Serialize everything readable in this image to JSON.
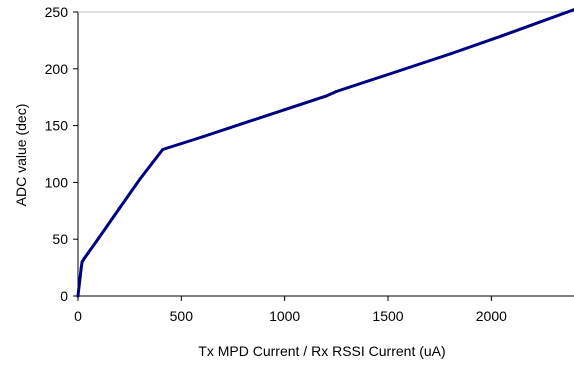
{
  "chart_data": {
    "type": "line",
    "title": "",
    "xlabel": "Tx MPD Current / Rx RSSI Current (uA)",
    "ylabel": "ADC value (dec)",
    "xlim": [
      0,
      2400
    ],
    "ylim": [
      0,
      250
    ],
    "xticks": [
      0,
      500,
      1000,
      1500,
      2000
    ],
    "yticks": [
      0,
      50,
      100,
      150,
      200,
      250
    ],
    "grid": false,
    "legend": "none",
    "series": [
      {
        "color": "#000080",
        "x": [
          0,
          5,
          10,
          15,
          20,
          30,
          50,
          100,
          200,
          300,
          410,
          600,
          800,
          1000,
          1200,
          1250,
          1500,
          1800,
          2050,
          2400
        ],
        "y": [
          0,
          8,
          16,
          24,
          30,
          33,
          38,
          51,
          77,
          103,
          129,
          140,
          152,
          164,
          176,
          180,
          195,
          213,
          229,
          252
        ]
      }
    ]
  }
}
